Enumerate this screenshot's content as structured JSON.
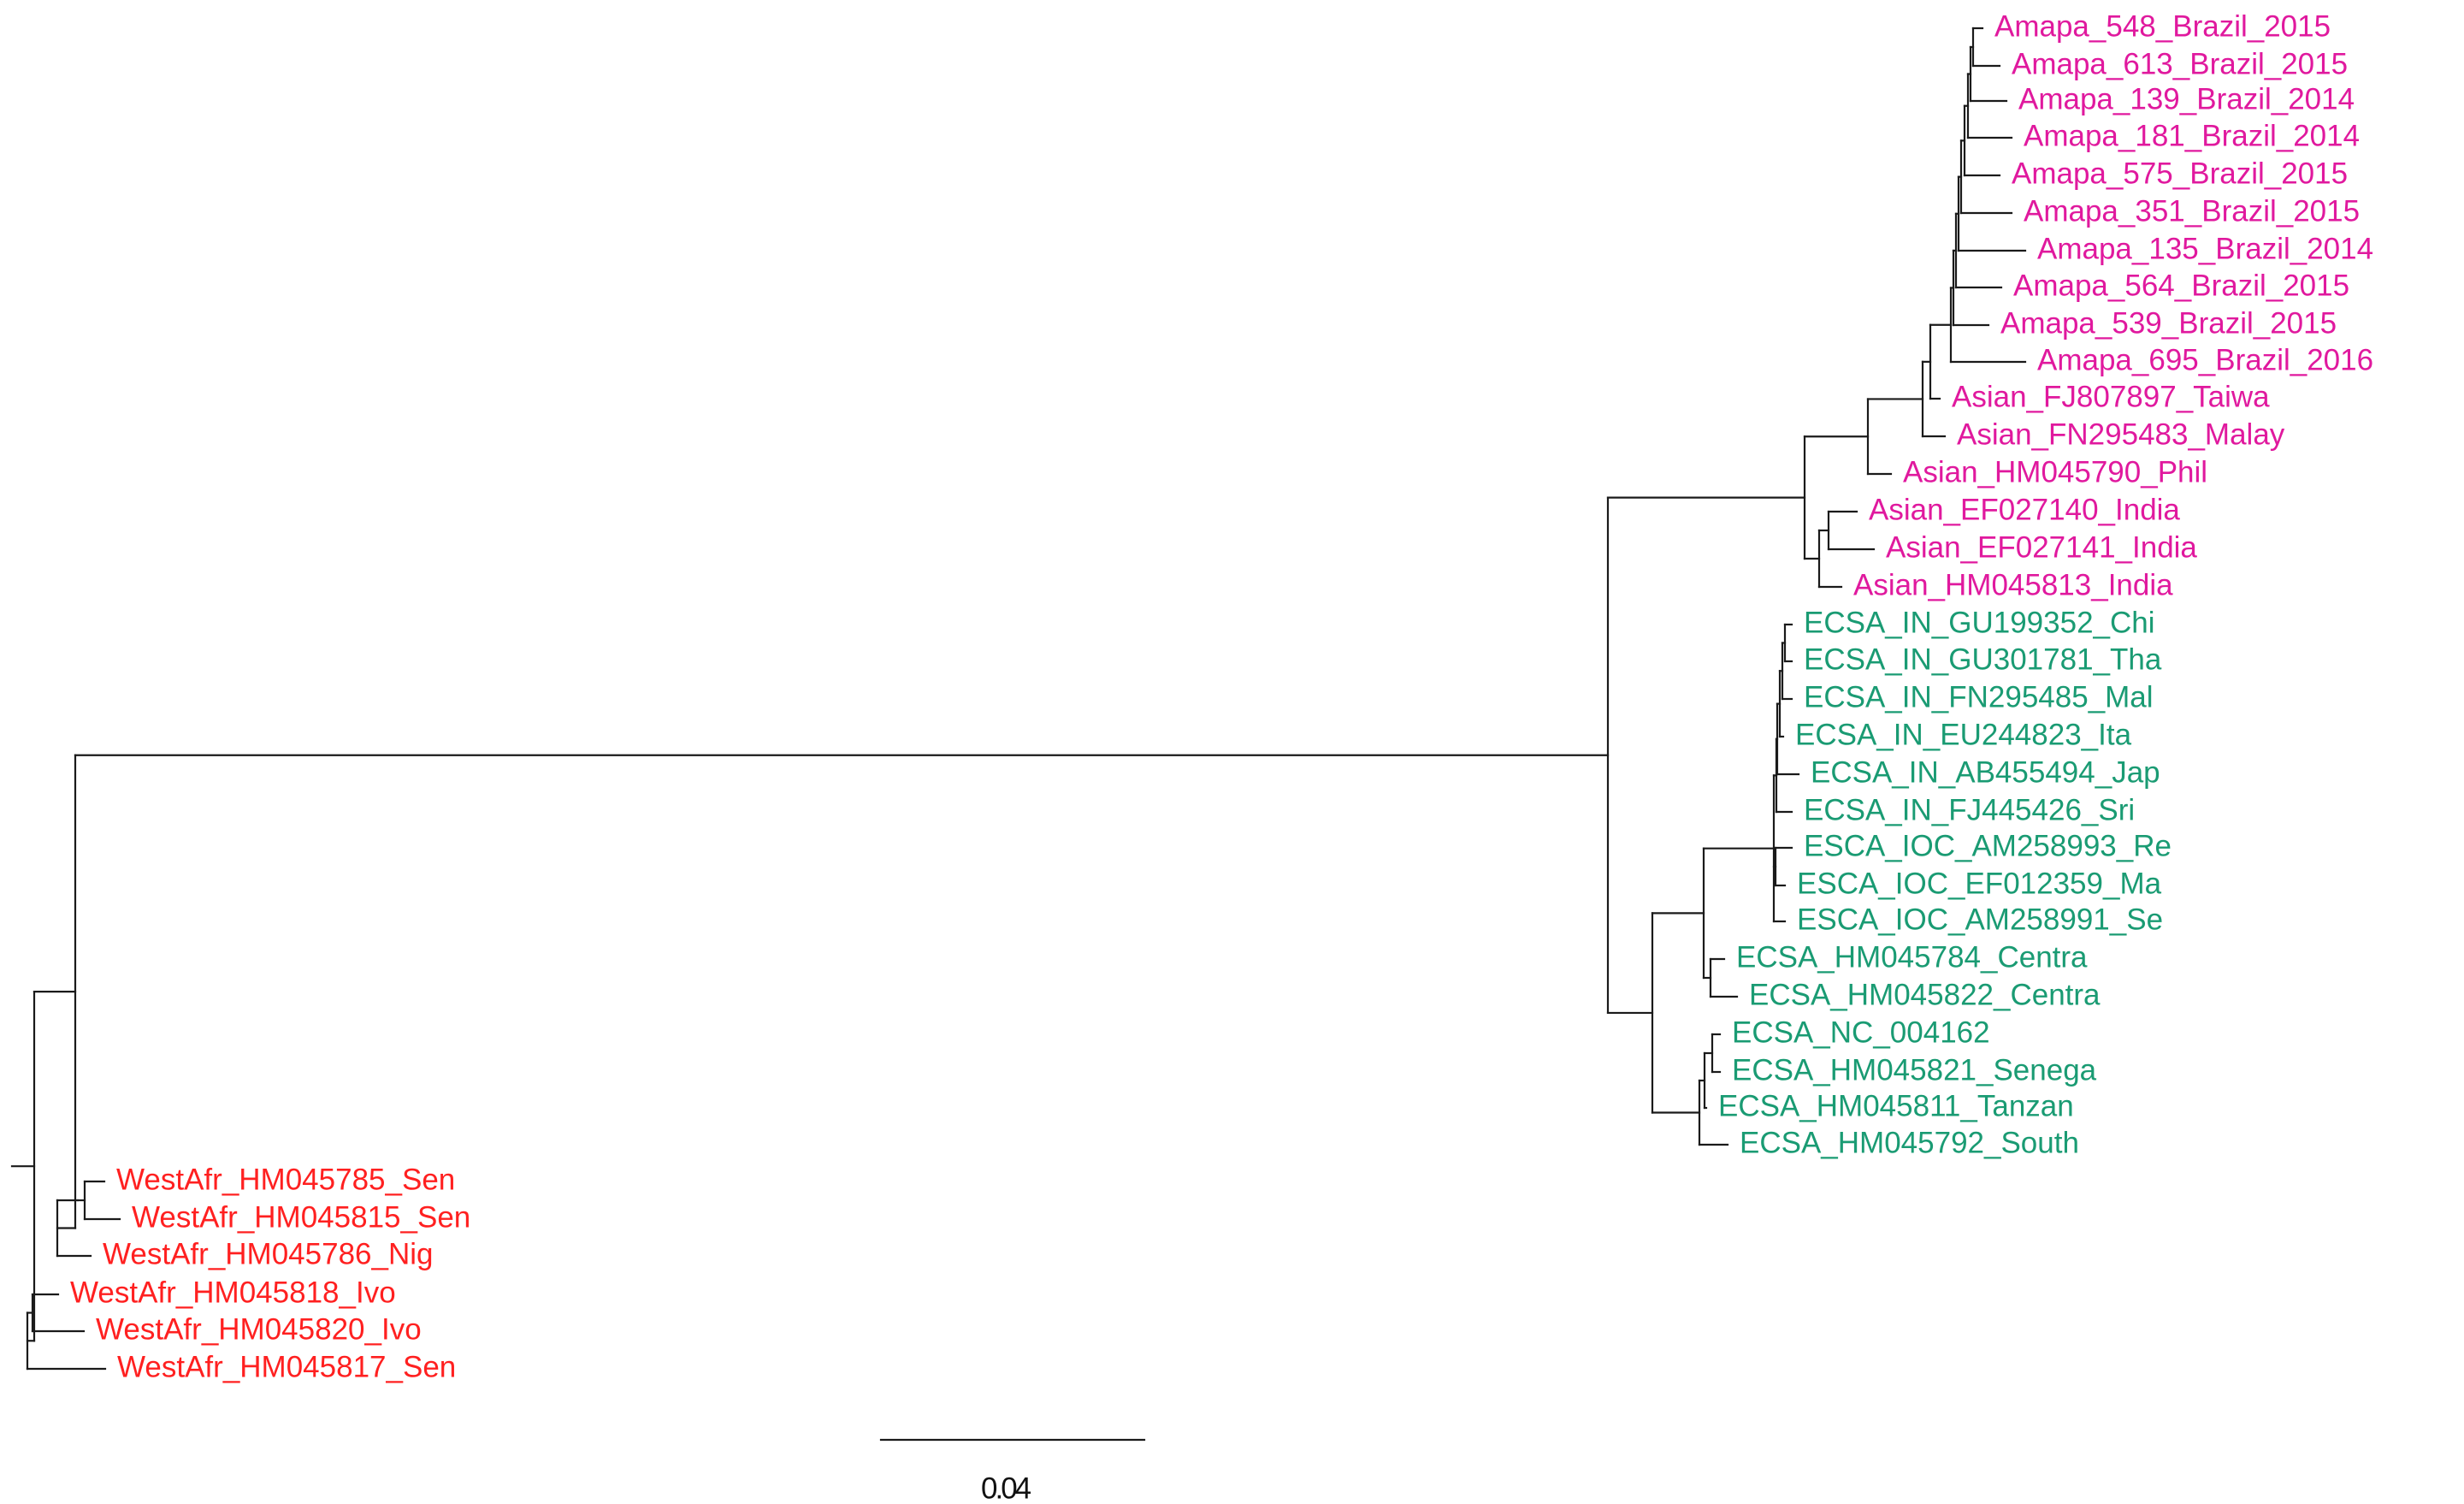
{
  "tree": {
    "scale_bar": {
      "label": "0.04",
      "length": 0.04
    },
    "clades": {
      "asian": {
        "color": "#e0199e"
      },
      "ecsa": {
        "color": "#1a9b73"
      },
      "westafr": {
        "color": "#ff2020"
      }
    },
    "leaves": [
      {
        "label": "Amapa_548_Brazil_2015",
        "clade": "asian"
      },
      {
        "label": "Amapa_613_Brazil_2015",
        "clade": "asian"
      },
      {
        "label": "Amapa_139_Brazil_2014",
        "clade": "asian"
      },
      {
        "label": "Amapa_181_Brazil_2014",
        "clade": "asian"
      },
      {
        "label": "Amapa_575_Brazil_2015",
        "clade": "asian"
      },
      {
        "label": "Amapa_351_Brazil_2015",
        "clade": "asian"
      },
      {
        "label": "Amapa_135_Brazil_2014",
        "clade": "asian"
      },
      {
        "label": "Amapa_564_Brazil_2015",
        "clade": "asian"
      },
      {
        "label": "Amapa_539_Brazil_2015",
        "clade": "asian"
      },
      {
        "label": "Amapa_695_Brazil_2016",
        "clade": "asian"
      },
      {
        "label": "Asian_FJ807897_Taiwa",
        "clade": "asian"
      },
      {
        "label": "Asian_FN295483_Malay",
        "clade": "asian"
      },
      {
        "label": "Asian_HM045790_Phil",
        "clade": "asian"
      },
      {
        "label": "Asian_EF027140_India",
        "clade": "asian"
      },
      {
        "label": "Asian_EF027141_India",
        "clade": "asian"
      },
      {
        "label": "Asian_HM045813_India",
        "clade": "asian"
      },
      {
        "label": "ECSA_IN_GU199352_Chi",
        "clade": "ecsa"
      },
      {
        "label": "ECSA_IN_GU301781_Tha",
        "clade": "ecsa"
      },
      {
        "label": "ECSA_IN_FN295485_Mal",
        "clade": "ecsa"
      },
      {
        "label": "ECSA_IN_EU244823_Ita",
        "clade": "ecsa"
      },
      {
        "label": "ECSA_IN_AB455494_Jap",
        "clade": "ecsa"
      },
      {
        "label": "ECSA_IN_FJ445426_Sri",
        "clade": "ecsa"
      },
      {
        "label": "ESCA_IOC_AM258993_Re",
        "clade": "ecsa"
      },
      {
        "label": "ESCA_IOC_EF012359_Ma",
        "clade": "ecsa"
      },
      {
        "label": "ESCA_IOC_AM258991_Se",
        "clade": "ecsa"
      },
      {
        "label": "ECSA_HM045784_Centra",
        "clade": "ecsa"
      },
      {
        "label": "ECSA_HM045822_Centra",
        "clade": "ecsa"
      },
      {
        "label": "ECSA_NC_004162",
        "clade": "ecsa"
      },
      {
        "label": "ECSA_HM045821_Senega",
        "clade": "ecsa"
      },
      {
        "label": "ECSA_HM045811_Tanzan",
        "clade": "ecsa"
      },
      {
        "label": "ECSA_HM045792_South",
        "clade": "ecsa"
      },
      {
        "label": "WestAfr_HM045785_Sen",
        "clade": "westafr"
      },
      {
        "label": "WestAfr_HM045815_Sen",
        "clade": "westafr"
      },
      {
        "label": "WestAfr_HM045786_Nig",
        "clade": "westafr"
      },
      {
        "label": "WestAfr_HM045818_Ivo",
        "clade": "westafr"
      },
      {
        "label": "WestAfr_HM045820_Ivo",
        "clade": "westafr"
      },
      {
        "label": "WestAfr_HM045817_Sen",
        "clade": "westafr"
      }
    ]
  }
}
